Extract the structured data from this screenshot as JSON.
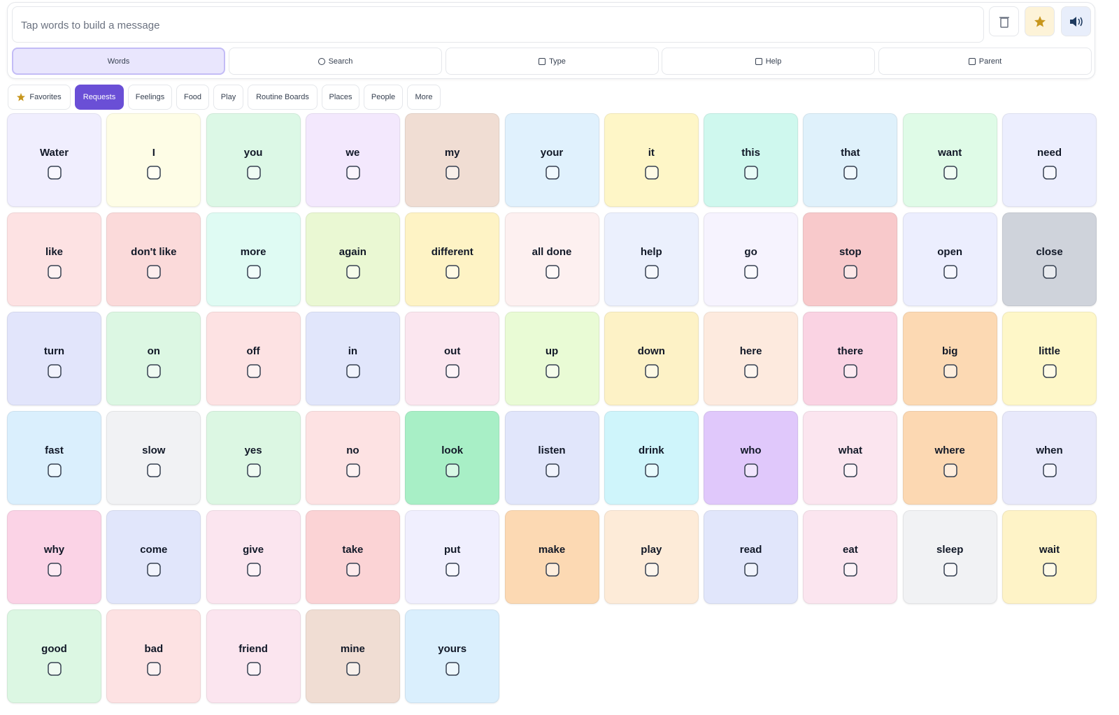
{
  "message_bar": {
    "placeholder": "Tap words to build a message"
  },
  "tabs": [
    {
      "label": "Words",
      "selected": true
    },
    {
      "label": "Search",
      "selected": false
    },
    {
      "label": "Type",
      "selected": false
    },
    {
      "label": "Help",
      "selected": false
    },
    {
      "label": "Parent",
      "selected": false
    }
  ],
  "categories": [
    {
      "label": "Favorites",
      "selected": false
    },
    {
      "label": "Requests",
      "selected": true
    },
    {
      "label": "Feelings",
      "selected": false
    },
    {
      "label": "Food",
      "selected": false
    },
    {
      "label": "Play",
      "selected": false
    },
    {
      "label": "Routine Boards",
      "selected": false
    },
    {
      "label": "Places",
      "selected": false
    },
    {
      "label": "People",
      "selected": false
    },
    {
      "label": "More",
      "selected": false
    }
  ],
  "tiles": [
    {
      "label": "Water",
      "color": "#f0eefe"
    },
    {
      "label": "I",
      "color": "#fefde6"
    },
    {
      "label": "you",
      "color": "#dcf8e6"
    },
    {
      "label": "we",
      "color": "#f3e8fd"
    },
    {
      "label": "my",
      "color": "#f0ddd3"
    },
    {
      "label": "your",
      "color": "#e0f1fd"
    },
    {
      "label": "it",
      "color": "#fef6c7"
    },
    {
      "label": "this",
      "color": "#cff8ee"
    },
    {
      "label": "that",
      "color": "#dff1fb"
    },
    {
      "label": "want",
      "color": "#dffbe7"
    },
    {
      "label": "need",
      "color": "#eceefe"
    },
    {
      "label": "like",
      "color": "#fde2e3"
    },
    {
      "label": "don't like",
      "color": "#fbdada"
    },
    {
      "label": "more",
      "color": "#dffbf3"
    },
    {
      "label": "again",
      "color": "#eaf8d3"
    },
    {
      "label": "different",
      "color": "#fef3c5"
    },
    {
      "label": "all done",
      "color": "#fdf0f0"
    },
    {
      "label": "help",
      "color": "#ebf0fd"
    },
    {
      "label": "go",
      "color": "#f6f3fe"
    },
    {
      "label": "stop",
      "color": "#f8c9cb"
    },
    {
      "label": "open",
      "color": "#eceefe"
    },
    {
      "label": "close",
      "color": "#cfd3db"
    },
    {
      "label": "turn",
      "color": "#e2e5fb"
    },
    {
      "label": "on",
      "color": "#dcf7e3"
    },
    {
      "label": "off",
      "color": "#fde2e3"
    },
    {
      "label": "in",
      "color": "#e1e6fb"
    },
    {
      "label": "out",
      "color": "#fbe6ef"
    },
    {
      "label": "up",
      "color": "#e9fbd5"
    },
    {
      "label": "down",
      "color": "#fdf2c6"
    },
    {
      "label": "here",
      "color": "#fdeade"
    },
    {
      "label": "there",
      "color": "#fad3e3"
    },
    {
      "label": "big",
      "color": "#fcd9b3"
    },
    {
      "label": "little",
      "color": "#fef7c8"
    },
    {
      "label": "fast",
      "color": "#daeffd"
    },
    {
      "label": "slow",
      "color": "#f1f2f4"
    },
    {
      "label": "yes",
      "color": "#dcf7e3"
    },
    {
      "label": "no",
      "color": "#fde2e3"
    },
    {
      "label": "look",
      "color": "#a8efc6"
    },
    {
      "label": "listen",
      "color": "#e1e6fb"
    },
    {
      "label": "drink",
      "color": "#cff5fb"
    },
    {
      "label": "who",
      "color": "#e0c8fb"
    },
    {
      "label": "what",
      "color": "#fbe5ef"
    },
    {
      "label": "where",
      "color": "#fcd8b2"
    },
    {
      "label": "when",
      "color": "#e8e9fb"
    },
    {
      "label": "why",
      "color": "#fbd3e6"
    },
    {
      "label": "come",
      "color": "#e1e6fb"
    },
    {
      "label": "give",
      "color": "#fbe5ef"
    },
    {
      "label": "take",
      "color": "#fbd3d5"
    },
    {
      "label": "put",
      "color": "#f0effe"
    },
    {
      "label": "make",
      "color": "#fcd9b3"
    },
    {
      "label": "play",
      "color": "#fdebd8"
    },
    {
      "label": "read",
      "color": "#e1e6fb"
    },
    {
      "label": "eat",
      "color": "#fbe5ef"
    },
    {
      "label": "sleep",
      "color": "#f1f2f4"
    },
    {
      "label": "wait",
      "color": "#fef3c7"
    },
    {
      "label": "good",
      "color": "#dcf7e3"
    },
    {
      "label": "bad",
      "color": "#fde2e3"
    },
    {
      "label": "friend",
      "color": "#fbe5ef"
    },
    {
      "label": "mine",
      "color": "#f0ddd3"
    },
    {
      "label": "yours",
      "color": "#daeffd"
    }
  ]
}
